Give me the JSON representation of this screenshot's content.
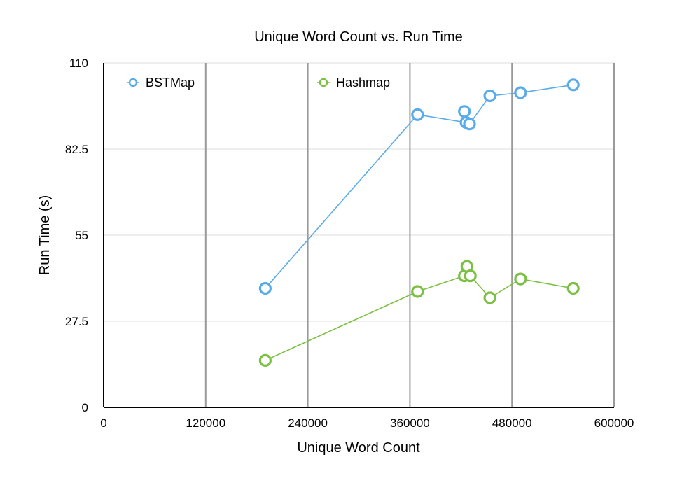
{
  "chart_data": {
    "type": "line",
    "title": "Unique Word Count vs. Run Time",
    "xlabel": "Unique Word Count",
    "ylabel": "Run Time (s)",
    "xlim": [
      0,
      600000
    ],
    "ylim": [
      0,
      110
    ],
    "x_ticks": [
      "0",
      "120000",
      "240000",
      "360000",
      "480000",
      "600000"
    ],
    "y_ticks": [
      "0",
      "27.5",
      "55",
      "82.5",
      "110"
    ],
    "x_grid": "major vertical lines",
    "y_grid": "light horizontal lines",
    "legend_position": "top",
    "series": [
      {
        "name": "BSTMap",
        "color": "#5aabea",
        "points": [
          [
            190000,
            38.0
          ],
          [
            369000,
            93.5
          ],
          [
            424000,
            94.5
          ],
          [
            426000,
            91.0
          ],
          [
            430000,
            90.5
          ],
          [
            454000,
            99.5
          ],
          [
            490000,
            100.5
          ],
          [
            552000,
            103.0
          ]
        ],
        "path_order": [
          0,
          1,
          3,
          2,
          4,
          5,
          6,
          7
        ]
      },
      {
        "name": "Hashmap",
        "color": "#7bc043",
        "points": [
          [
            190000,
            15.0
          ],
          [
            369000,
            37.0
          ],
          [
            424000,
            42.0
          ],
          [
            427000,
            45.0
          ],
          [
            431000,
            42.0
          ],
          [
            454000,
            35.0
          ],
          [
            490000,
            41.0
          ],
          [
            552000,
            38.0
          ]
        ],
        "path_order": [
          0,
          1,
          2,
          3,
          4,
          5,
          6,
          7
        ]
      }
    ]
  }
}
